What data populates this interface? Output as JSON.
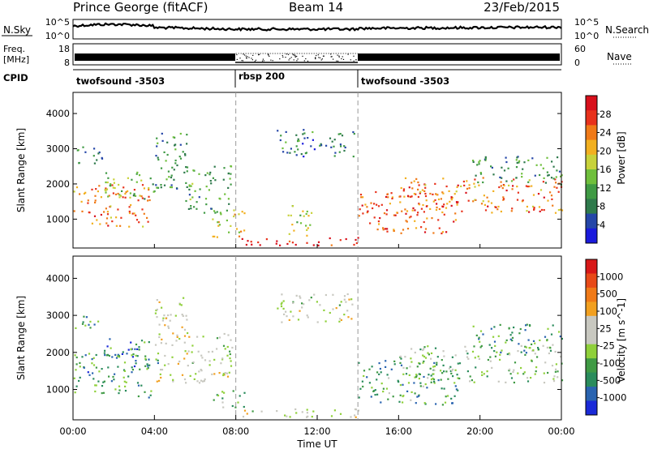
{
  "header": {
    "station": "Prince George (fitACF)",
    "beam": "Beam 14",
    "date": "23/Feb/2015"
  },
  "noise_panel": {
    "left_label": "N.Sky",
    "right_label": "N.Search",
    "y_ticks": [
      "10^5",
      "10^0"
    ]
  },
  "freq_panel": {
    "left_label_1": "Freq.",
    "left_label_2": "[MHz]",
    "left_ticks": [
      "18",
      "8"
    ],
    "right_label": "Nave",
    "right_ticks": [
      "60",
      "0"
    ]
  },
  "cpid_panel": {
    "label": "CPID",
    "segments": [
      {
        "name": "twofsound -3503",
        "start_hour": 0,
        "end_hour": 8
      },
      {
        "name": "rbsp 200",
        "start_hour": 8,
        "end_hour": 14
      },
      {
        "name": "twofsound -3503",
        "start_hour": 14,
        "end_hour": 24
      }
    ]
  },
  "x_axis": {
    "label": "Time UT",
    "ticks": [
      "00:00",
      "04:00",
      "08:00",
      "12:00",
      "16:00",
      "20:00",
      "00:00"
    ],
    "range_hours": [
      0,
      24
    ]
  },
  "chart_data": [
    {
      "type": "heatmap",
      "name": "power",
      "ylabel": "Slant Range [km]",
      "ylim": [
        180,
        4600
      ],
      "y_ticks": [
        "4000",
        "3000",
        "2000",
        "1000"
      ],
      "y_tick_values": [
        4000,
        3000,
        2000,
        1000
      ],
      "colorbar": {
        "label": "Power [dB]",
        "ticks": [
          "28",
          "24",
          "20",
          "16",
          "12",
          "8",
          "4"
        ],
        "tick_values": [
          28,
          24,
          20,
          16,
          12,
          8,
          4
        ],
        "range": [
          0,
          32
        ],
        "colors": [
          "#1a1adc",
          "#2546a8",
          "#2f7a4c",
          "#3f9a44",
          "#6fbf3c",
          "#c8d23a",
          "#f2b020",
          "#f07a18",
          "#e8321c",
          "#d8101c"
        ]
      },
      "regions": [
        {
          "t": [
            0.0,
            3.8
          ],
          "r": [
            800,
            2000
          ],
          "level": 0.75
        },
        {
          "t": [
            1.5,
            4.2
          ],
          "r": [
            1600,
            2400
          ],
          "level": 0.45
        },
        {
          "t": [
            0.0,
            1.5
          ],
          "r": [
            2600,
            3100
          ],
          "level": 0.25
        },
        {
          "t": [
            4.0,
            5.6
          ],
          "r": [
            1800,
            3500
          ],
          "level": 0.3
        },
        {
          "t": [
            5.5,
            7.8
          ],
          "r": [
            1200,
            2600
          ],
          "level": 0.35
        },
        {
          "t": [
            6.8,
            8.5
          ],
          "r": [
            500,
            1300
          ],
          "level": 0.6
        },
        {
          "t": [
            8.0,
            14.0
          ],
          "r": [
            250,
            500
          ],
          "level": 0.95
        },
        {
          "t": [
            10.5,
            11.8
          ],
          "r": [
            500,
            1400
          ],
          "level": 0.5
        },
        {
          "t": [
            10.0,
            13.8
          ],
          "r": [
            2800,
            3600
          ],
          "level": 0.25
        },
        {
          "t": [
            14.0,
            19.0
          ],
          "r": [
            600,
            1800
          ],
          "level": 0.8
        },
        {
          "t": [
            16.0,
            24.0
          ],
          "r": [
            1200,
            2200
          ],
          "level": 0.75
        },
        {
          "t": [
            19.5,
            24.0
          ],
          "r": [
            2000,
            2800
          ],
          "level": 0.3
        }
      ]
    },
    {
      "type": "heatmap",
      "name": "velocity",
      "ylabel": "Slant Range [km]",
      "ylim": [
        180,
        4600
      ],
      "y_ticks": [
        "4000",
        "3000",
        "2000",
        "1000"
      ],
      "y_tick_values": [
        4000,
        3000,
        2000,
        1000
      ],
      "colorbar": {
        "label": "Velocity [m s^-1]",
        "ticks": [
          "1000",
          "500",
          "100",
          "25",
          "-25",
          "-100",
          "-500",
          "-1000"
        ],
        "tick_values": [
          1000,
          500,
          100,
          25,
          -25,
          -100,
          -500,
          -1000
        ],
        "range": [
          -1250,
          1250
        ],
        "colors": [
          "#1a2ad8",
          "#2a64b0",
          "#2a8c5c",
          "#3f9a44",
          "#8fd03a",
          "#c8c8c0",
          "#c8c8c0",
          "#f2a020",
          "#f07a18",
          "#e84a18",
          "#d81818"
        ]
      },
      "regions": [
        {
          "t": [
            0.0,
            3.8
          ],
          "r": [
            800,
            2000
          ],
          "level": 0.25
        },
        {
          "t": [
            1.5,
            4.2
          ],
          "r": [
            1600,
            2400
          ],
          "level": 0.22
        },
        {
          "t": [
            0.0,
            1.2
          ],
          "r": [
            2600,
            3100
          ],
          "level": 0.3
        },
        {
          "t": [
            4.0,
            5.6
          ],
          "r": [
            1200,
            3500
          ],
          "level": 0.55
        },
        {
          "t": [
            5.5,
            7.8
          ],
          "r": [
            1200,
            2600
          ],
          "level": 0.5
        },
        {
          "t": [
            6.8,
            8.5
          ],
          "r": [
            500,
            1000
          ],
          "level": 0.35
        },
        {
          "t": [
            8.0,
            14.0
          ],
          "r": [
            250,
            500
          ],
          "level": 0.52
        },
        {
          "t": [
            10.0,
            13.8
          ],
          "r": [
            2800,
            3600
          ],
          "level": 0.5
        },
        {
          "t": [
            14.0,
            19.0
          ],
          "r": [
            600,
            1800
          ],
          "level": 0.3
        },
        {
          "t": [
            16.0,
            24.0
          ],
          "r": [
            1200,
            2200
          ],
          "level": 0.4
        },
        {
          "t": [
            19.5,
            24.0
          ],
          "r": [
            2000,
            2800
          ],
          "level": 0.3
        }
      ]
    }
  ]
}
